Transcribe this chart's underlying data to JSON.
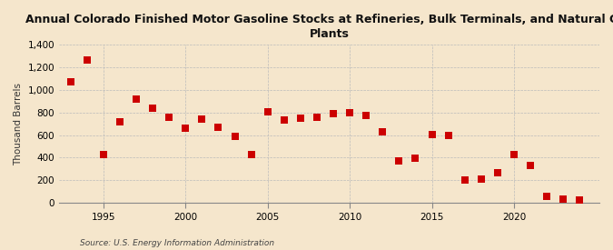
{
  "years": [
    1993,
    1994,
    1995,
    1996,
    1997,
    1998,
    1999,
    2000,
    2001,
    2002,
    2003,
    2004,
    2005,
    2006,
    2007,
    2008,
    2009,
    2010,
    2011,
    2012,
    2013,
    2014,
    2015,
    2016,
    2017,
    2018,
    2019,
    2020,
    2021,
    2022,
    2023,
    2024
  ],
  "values": [
    1075,
    1265,
    430,
    720,
    920,
    835,
    760,
    660,
    745,
    670,
    585,
    430,
    810,
    730,
    750,
    760,
    790,
    800,
    775,
    630,
    375,
    395,
    605,
    600,
    200,
    210,
    265,
    430,
    330,
    55,
    30,
    25
  ],
  "title_line1": "Annual Colorado Finished Motor Gasoline Stocks at Refineries, Bulk Terminals, and Natural Gas",
  "title_line2": "Plants",
  "ylabel": "Thousand Barrels",
  "source": "Source: U.S. Energy Information Administration",
  "marker_color": "#cc0000",
  "marker_size": 28,
  "bg_color": "#f5e6cc",
  "grid_color": "#bbbbbb",
  "ylim": [
    0,
    1400
  ],
  "yticks": [
    0,
    200,
    400,
    600,
    800,
    1000,
    1200,
    1400
  ],
  "xticks": [
    1995,
    2000,
    2005,
    2010,
    2015,
    2020
  ],
  "xlim": [
    1992.3,
    2025.2
  ]
}
